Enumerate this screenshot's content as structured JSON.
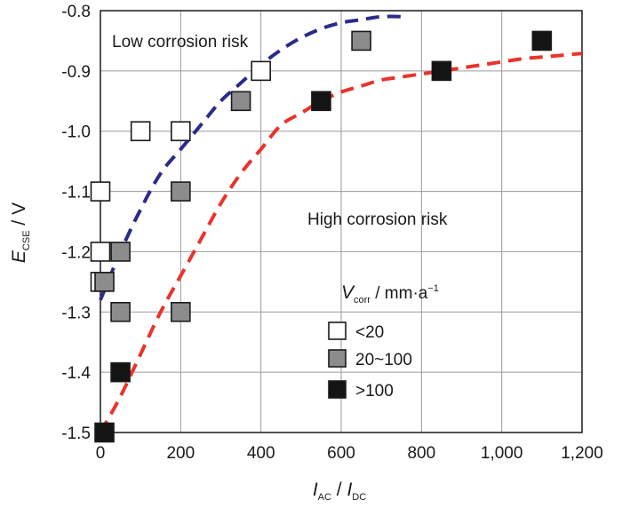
{
  "chart_data": {
    "type": "scatter",
    "xlim": [
      0,
      1200
    ],
    "ylim": [
      -1.5,
      -0.8
    ],
    "x_ticks": [
      0,
      200,
      400,
      600,
      800,
      1000,
      1200
    ],
    "x_tick_labels": [
      "0",
      "200",
      "400",
      "600",
      "800",
      "1,000",
      "1,200"
    ],
    "y_ticks": [
      -1.5,
      -1.4,
      -1.3,
      -1.2,
      -1.1,
      -1.0,
      -0.9,
      -0.8
    ],
    "y_tick_labels": [
      "-1.5",
      "-1.4",
      "-1.3",
      "-1.2",
      "-1.1",
      "-1.0",
      "-0.9",
      "-0.8"
    ],
    "grid": true,
    "xlabel": {
      "main1": "I",
      "sub1": "AC",
      "sep": " / ",
      "main2": "I",
      "sub2": "DC"
    },
    "ylabel": {
      "main": "E",
      "sub": "CSE",
      "suffix": " / V"
    },
    "annotations": {
      "low_risk": "Low corrosion risk",
      "high_risk": "High corrosion risk"
    },
    "legend": {
      "title_main": "V",
      "title_sub": "corr",
      "title_unit": " / mm·a",
      "title_sup": "−1",
      "placement": "lower-right"
    },
    "series": [
      {
        "name": "<20",
        "label": "<20",
        "color": "#ffffff",
        "points": [
          [
            0,
            -1.1
          ],
          [
            0,
            -1.2
          ],
          [
            0,
            -1.25
          ],
          [
            100,
            -1.0
          ],
          [
            200,
            -1.0
          ],
          [
            400,
            -0.9
          ]
        ]
      },
      {
        "name": "20~100",
        "label": "20~100",
        "color": "#8c8c8c",
        "points": [
          [
            10,
            -1.25
          ],
          [
            50,
            -1.2
          ],
          [
            50,
            -1.3
          ],
          [
            200,
            -1.1
          ],
          [
            200,
            -1.3
          ],
          [
            350,
            -0.95
          ],
          [
            650,
            -0.85
          ]
        ]
      },
      {
        "name": ">100",
        "label": ">100",
        "color": "#141414",
        "points": [
          [
            10,
            -1.5
          ],
          [
            50,
            -1.4
          ],
          [
            550,
            -0.95
          ],
          [
            850,
            -0.9
          ],
          [
            1100,
            -0.85
          ]
        ]
      }
    ],
    "fit_curves": [
      {
        "name": "boundary-blue",
        "color": "#2b2b8c",
        "points": [
          [
            0,
            -1.28
          ],
          [
            50,
            -1.2
          ],
          [
            100,
            -1.13
          ],
          [
            150,
            -1.07
          ],
          [
            200,
            -1.03
          ],
          [
            250,
            -0.99
          ],
          [
            300,
            -0.95
          ],
          [
            350,
            -0.92
          ],
          [
            400,
            -0.89
          ],
          [
            450,
            -0.865
          ],
          [
            500,
            -0.845
          ],
          [
            550,
            -0.83
          ],
          [
            600,
            -0.82
          ],
          [
            650,
            -0.815
          ],
          [
            700,
            -0.81
          ],
          [
            760,
            -0.81
          ]
        ]
      },
      {
        "name": "boundary-red",
        "color": "#e8342c",
        "points": [
          [
            0,
            -1.5
          ],
          [
            50,
            -1.44
          ],
          [
            100,
            -1.37
          ],
          [
            150,
            -1.3
          ],
          [
            200,
            -1.24
          ],
          [
            250,
            -1.18
          ],
          [
            300,
            -1.12
          ],
          [
            350,
            -1.07
          ],
          [
            400,
            -1.03
          ],
          [
            450,
            -0.99
          ],
          [
            500,
            -0.97
          ],
          [
            550,
            -0.95
          ],
          [
            600,
            -0.935
          ],
          [
            650,
            -0.925
          ],
          [
            700,
            -0.915
          ],
          [
            750,
            -0.91
          ],
          [
            800,
            -0.905
          ],
          [
            850,
            -0.9
          ],
          [
            900,
            -0.895
          ],
          [
            950,
            -0.89
          ],
          [
            1000,
            -0.885
          ],
          [
            1050,
            -0.88
          ],
          [
            1100,
            -0.877
          ],
          [
            1150,
            -0.874
          ],
          [
            1200,
            -0.871
          ]
        ]
      }
    ]
  }
}
